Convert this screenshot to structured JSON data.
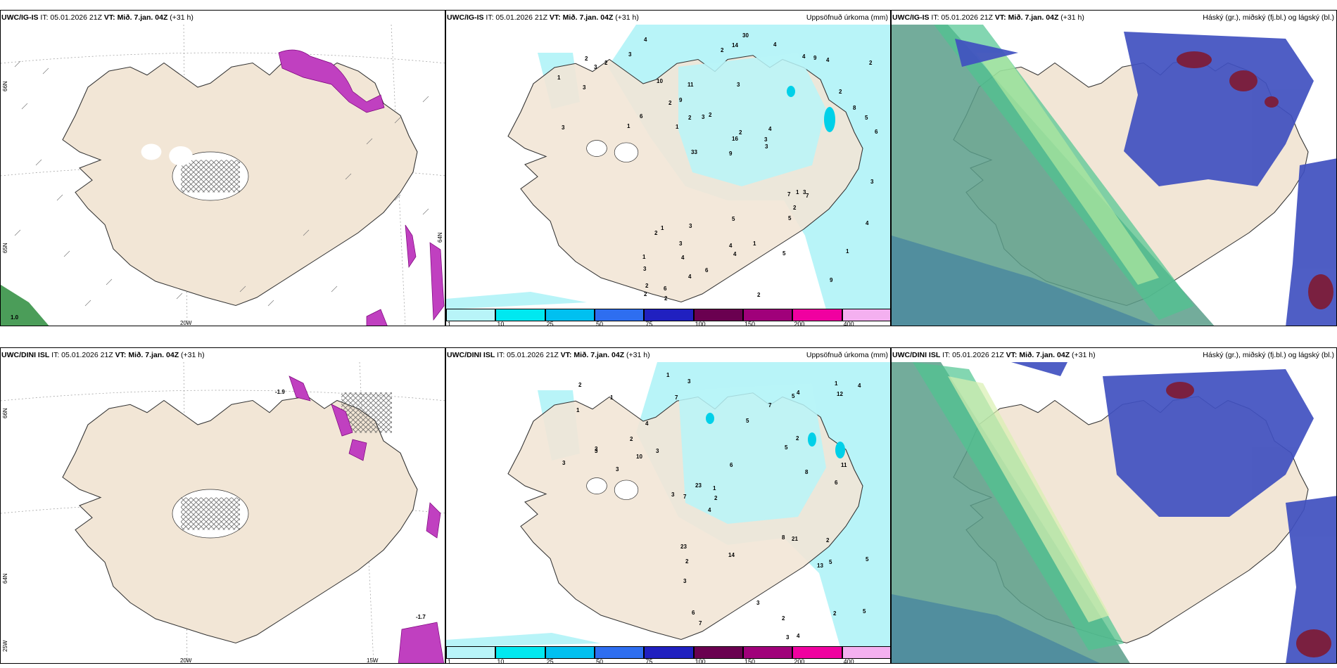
{
  "panels": [
    {
      "model": "UWC/IG-IS",
      "it_label": "IT: 05.01.2026 21Z",
      "vt_label": "VT: Mið. 7.jan. 04Z",
      "lead": "(+31 h)",
      "right_title": ""
    },
    {
      "model": "UWC/IG-IS",
      "it_label": "IT: 05.01.2026 21Z",
      "vt_label": "VT: Mið. 7.jan. 04Z",
      "lead": "(+31 h)",
      "right_title": "Uppsöfnuð úrkoma (mm)"
    },
    {
      "model": "UWC/IG-IS",
      "it_label": "IT: 05.01.2026 21Z",
      "vt_label": "VT: Mið. 7.jan. 04Z",
      "lead": "(+31 h)",
      "right_title": "Háský (gr.), miðský (fj.bl.) og lágský (bl.)"
    },
    {
      "model": "UWC/DINI ISL",
      "it_label": "IT: 05.01.2026 21Z",
      "vt_label": "VT: Mið. 7.jan. 04Z",
      "lead": "(+31 h)",
      "right_title": ""
    },
    {
      "model": "UWC/DINI ISL",
      "it_label": "IT: 05.01.2026 21Z",
      "vt_label": "VT: Mið. 7.jan. 04Z",
      "lead": "(+31 h)",
      "right_title": "Uppsöfnuð úrkoma (mm)"
    },
    {
      "model": "UWC/DINI ISL",
      "it_label": "IT: 05.01.2026 21Z",
      "vt_label": "VT: Mið. 7.jan. 04Z",
      "lead": "(+31 h)",
      "right_title": "Háský (gr.), miðský (fj.bl.) og lágský (bl.)"
    }
  ],
  "colorbar": {
    "labels": [
      "1",
      "10",
      "25",
      "50",
      "75",
      "100",
      "150",
      "200",
      "400"
    ],
    "colors": [
      "#b8f4f8",
      "#00e8f0",
      "#00c0f0",
      "#2e6ef0",
      "#2020c0",
      "#6a0050",
      "#a0007a",
      "#f000a0",
      "#f4b0f0"
    ]
  },
  "grid_labels": {
    "lat_66": "66N",
    "lat_64": "64N",
    "lat_65": "65N",
    "lon_20w": "20W",
    "lon_15w": "15W",
    "lon_25w": "25W"
  },
  "temp_labels": {
    "top_left": "1.0",
    "bottom_a": "-1.9",
    "bottom_b": "-1.7"
  },
  "precip_values_top": [
    "1",
    "1",
    "3",
    "3",
    "2",
    "3",
    "2",
    "3",
    "1",
    "2",
    "3",
    "4",
    "3",
    "4",
    "7",
    "10",
    "14",
    "6",
    "7",
    "8",
    "9",
    "4",
    "16",
    "11",
    "4",
    "3",
    "9",
    "1",
    "3",
    "2",
    "3",
    "1",
    "5",
    "4",
    "5",
    "3",
    "2",
    "4",
    "3",
    "2",
    "2",
    "2",
    "2",
    "5",
    "3",
    "2",
    "2",
    "1",
    "4",
    "30",
    "33",
    "6",
    "9",
    "9",
    "6",
    "4",
    "2",
    "2",
    "4",
    "5",
    "6",
    "1",
    "2",
    "1",
    "4",
    "2",
    "3"
  ],
  "precip_values_bottom": [
    "2",
    "3",
    "3",
    "3",
    "2",
    "1",
    "2",
    "1",
    "3",
    "6",
    "21",
    "12",
    "10",
    "8",
    "7",
    "7",
    "3",
    "6",
    "5",
    "5",
    "3",
    "2",
    "2",
    "3",
    "4",
    "5",
    "13",
    "14",
    "23",
    "23",
    "3",
    "11",
    "5",
    "2",
    "5",
    "7",
    "4",
    "1",
    "2",
    "1",
    "5",
    "2",
    "2",
    "3",
    "7",
    "8",
    "6",
    "1",
    "4",
    "4",
    "4"
  ],
  "colors": {
    "land": "#f2e6d6",
    "sea": "#ffffff",
    "precip_light": "#b8f4f8",
    "high_cloud": "#5a9e8a",
    "mid_cloud": "#4050c0",
    "low_cloud": "#7a2040",
    "cloud_green": "#4ec490"
  }
}
